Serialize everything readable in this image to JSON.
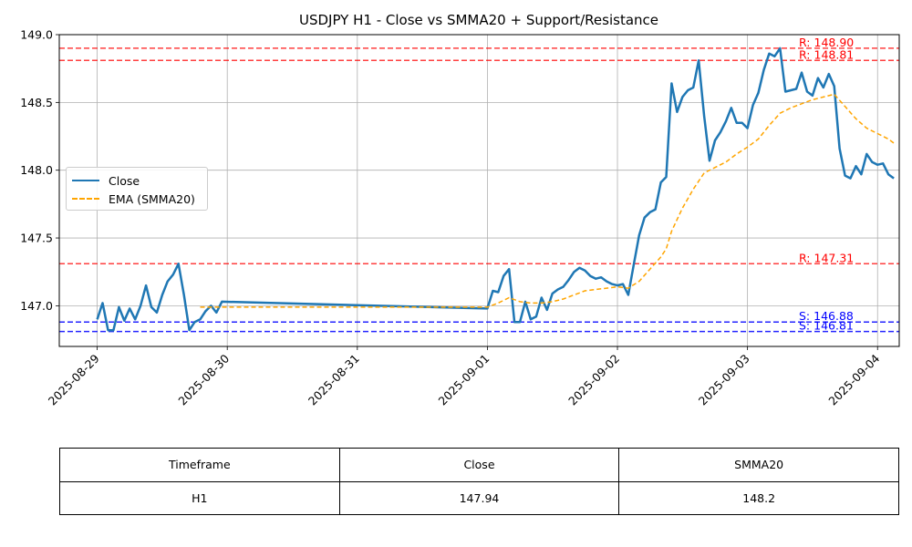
{
  "chart_data": {
    "type": "line",
    "title": "USDJPY H1 - Close vs SMMA20 + Support/Resistance",
    "xlabel": "",
    "ylabel": "",
    "x_range": [
      "2025-08-28 17:00",
      "2025-09-04 04:00"
    ],
    "ylim": [
      146.7,
      149.0
    ],
    "x_ticks": [
      "2025-08-29",
      "2025-08-30",
      "2025-08-31",
      "2025-09-01",
      "2025-09-02",
      "2025-09-03",
      "2025-09-04"
    ],
    "y_ticks": [
      "147.0",
      "147.5",
      "148.0",
      "148.5",
      "149.0"
    ],
    "grid": true,
    "legend_position": "center-left",
    "colors": {
      "close": "#1f77b4",
      "ema": "#ffa500",
      "resistance": "#ff0000",
      "support": "#0000ff",
      "grid": "#b0b0b0"
    },
    "series": [
      {
        "name": "Close",
        "style": "solid",
        "points": [
          [
            "2025-08-29 00:00",
            146.9
          ],
          [
            "2025-08-29 01:00",
            147.02
          ],
          [
            "2025-08-29 02:00",
            146.82
          ],
          [
            "2025-08-29 03:00",
            146.82
          ],
          [
            "2025-08-29 04:00",
            146.99
          ],
          [
            "2025-08-29 05:00",
            146.89
          ],
          [
            "2025-08-29 06:00",
            146.98
          ],
          [
            "2025-08-29 07:00",
            146.9
          ],
          [
            "2025-08-29 08:00",
            147.0
          ],
          [
            "2025-08-29 09:00",
            147.15
          ],
          [
            "2025-08-29 10:00",
            146.99
          ],
          [
            "2025-08-29 11:00",
            146.95
          ],
          [
            "2025-08-29 12:00",
            147.08
          ],
          [
            "2025-08-29 13:00",
            147.18
          ],
          [
            "2025-08-29 14:00",
            147.23
          ],
          [
            "2025-08-29 15:00",
            147.31
          ],
          [
            "2025-08-29 16:00",
            147.08
          ],
          [
            "2025-08-29 17:00",
            146.82
          ],
          [
            "2025-08-29 18:00",
            146.88
          ],
          [
            "2025-08-29 19:00",
            146.9
          ],
          [
            "2025-08-29 20:00",
            146.96
          ],
          [
            "2025-08-29 21:00",
            147.0
          ],
          [
            "2025-08-29 22:00",
            146.95
          ],
          [
            "2025-08-29 23:00",
            147.03
          ],
          [
            "2025-09-01 00:00",
            146.98
          ],
          [
            "2025-09-01 01:00",
            147.11
          ],
          [
            "2025-09-01 02:00",
            147.1
          ],
          [
            "2025-09-01 03:00",
            147.22
          ],
          [
            "2025-09-01 04:00",
            147.27
          ],
          [
            "2025-09-01 05:00",
            146.88
          ],
          [
            "2025-09-01 06:00",
            146.88
          ],
          [
            "2025-09-01 07:00",
            147.03
          ],
          [
            "2025-09-01 08:00",
            146.9
          ],
          [
            "2025-09-01 09:00",
            146.92
          ],
          [
            "2025-09-01 10:00",
            147.06
          ],
          [
            "2025-09-01 11:00",
            146.97
          ],
          [
            "2025-09-01 12:00",
            147.09
          ],
          [
            "2025-09-01 13:00",
            147.12
          ],
          [
            "2025-09-01 14:00",
            147.14
          ],
          [
            "2025-09-01 15:00",
            147.19
          ],
          [
            "2025-09-01 16:00",
            147.25
          ],
          [
            "2025-09-01 17:00",
            147.28
          ],
          [
            "2025-09-01 18:00",
            147.26
          ],
          [
            "2025-09-01 19:00",
            147.22
          ],
          [
            "2025-09-01 20:00",
            147.2
          ],
          [
            "2025-09-01 21:00",
            147.21
          ],
          [
            "2025-09-01 22:00",
            147.18
          ],
          [
            "2025-09-01 23:00",
            147.16
          ],
          [
            "2025-09-02 00:00",
            147.15
          ],
          [
            "2025-09-02 01:00",
            147.16
          ],
          [
            "2025-09-02 02:00",
            147.08
          ],
          [
            "2025-09-02 03:00",
            147.3
          ],
          [
            "2025-09-02 04:00",
            147.52
          ],
          [
            "2025-09-02 05:00",
            147.65
          ],
          [
            "2025-09-02 06:00",
            147.69
          ],
          [
            "2025-09-02 07:00",
            147.71
          ],
          [
            "2025-09-02 08:00",
            147.91
          ],
          [
            "2025-09-02 09:00",
            147.95
          ],
          [
            "2025-09-02 10:00",
            148.64
          ],
          [
            "2025-09-02 11:00",
            148.43
          ],
          [
            "2025-09-02 12:00",
            148.54
          ],
          [
            "2025-09-02 13:00",
            148.59
          ],
          [
            "2025-09-02 14:00",
            148.61
          ],
          [
            "2025-09-02 15:00",
            148.81
          ],
          [
            "2025-09-02 16:00",
            148.4
          ],
          [
            "2025-09-02 17:00",
            148.07
          ],
          [
            "2025-09-02 18:00",
            148.22
          ],
          [
            "2025-09-02 19:00",
            148.28
          ],
          [
            "2025-09-02 20:00",
            148.36
          ],
          [
            "2025-09-02 21:00",
            148.46
          ],
          [
            "2025-09-02 22:00",
            148.35
          ],
          [
            "2025-09-02 23:00",
            148.35
          ],
          [
            "2025-09-03 00:00",
            148.31
          ],
          [
            "2025-09-03 01:00",
            148.48
          ],
          [
            "2025-09-03 02:00",
            148.57
          ],
          [
            "2025-09-03 03:00",
            148.74
          ],
          [
            "2025-09-03 04:00",
            148.86
          ],
          [
            "2025-09-03 05:00",
            148.84
          ],
          [
            "2025-09-03 06:00",
            148.9
          ],
          [
            "2025-09-03 07:00",
            148.58
          ],
          [
            "2025-09-03 08:00",
            148.59
          ],
          [
            "2025-09-03 09:00",
            148.6
          ],
          [
            "2025-09-03 10:00",
            148.72
          ],
          [
            "2025-09-03 11:00",
            148.58
          ],
          [
            "2025-09-03 12:00",
            148.55
          ],
          [
            "2025-09-03 13:00",
            148.68
          ],
          [
            "2025-09-03 14:00",
            148.61
          ],
          [
            "2025-09-03 15:00",
            148.71
          ],
          [
            "2025-09-03 16:00",
            148.62
          ],
          [
            "2025-09-03 17:00",
            148.16
          ],
          [
            "2025-09-03 18:00",
            147.96
          ],
          [
            "2025-09-03 19:00",
            147.94
          ],
          [
            "2025-09-03 20:00",
            148.03
          ],
          [
            "2025-09-03 21:00",
            147.97
          ],
          [
            "2025-09-03 22:00",
            148.12
          ],
          [
            "2025-09-03 23:00",
            148.06
          ],
          [
            "2025-09-04 00:00",
            148.04
          ],
          [
            "2025-09-04 01:00",
            148.05
          ],
          [
            "2025-09-04 02:00",
            147.97
          ],
          [
            "2025-09-04 03:00",
            147.94
          ]
        ]
      },
      {
        "name": "EMA (SMMA20)",
        "style": "dashed",
        "points": [
          [
            "2025-08-29 19:00",
            146.99
          ],
          [
            "2025-08-29 23:00",
            146.99
          ],
          [
            "2025-09-01 00:00",
            146.99
          ],
          [
            "2025-09-01 02:00",
            147.02
          ],
          [
            "2025-09-01 04:00",
            147.06
          ],
          [
            "2025-09-01 06:00",
            147.03
          ],
          [
            "2025-09-01 08:00",
            147.02
          ],
          [
            "2025-09-01 10:00",
            147.02
          ],
          [
            "2025-09-01 12:00",
            147.03
          ],
          [
            "2025-09-01 14:00",
            147.05
          ],
          [
            "2025-09-01 16:00",
            147.08
          ],
          [
            "2025-09-01 18:00",
            147.11
          ],
          [
            "2025-09-01 20:00",
            147.12
          ],
          [
            "2025-09-01 22:00",
            147.13
          ],
          [
            "2025-09-02 00:00",
            147.14
          ],
          [
            "2025-09-02 02:00",
            147.13
          ],
          [
            "2025-09-02 04:00",
            147.18
          ],
          [
            "2025-09-02 06:00",
            147.27
          ],
          [
            "2025-09-02 08:00",
            147.36
          ],
          [
            "2025-09-02 09:00",
            147.42
          ],
          [
            "2025-09-02 10:00",
            147.55
          ],
          [
            "2025-09-02 12:00",
            147.72
          ],
          [
            "2025-09-02 14:00",
            147.86
          ],
          [
            "2025-09-02 16:00",
            147.98
          ],
          [
            "2025-09-02 18:00",
            148.02
          ],
          [
            "2025-09-02 20:00",
            148.06
          ],
          [
            "2025-09-02 22:00",
            148.12
          ],
          [
            "2025-09-03 00:00",
            148.17
          ],
          [
            "2025-09-03 02:00",
            148.23
          ],
          [
            "2025-09-03 04:00",
            148.33
          ],
          [
            "2025-09-03 06:00",
            148.42
          ],
          [
            "2025-09-03 08:00",
            148.46
          ],
          [
            "2025-09-03 10:00",
            148.49
          ],
          [
            "2025-09-03 12:00",
            148.52
          ],
          [
            "2025-09-03 14:00",
            148.54
          ],
          [
            "2025-09-03 16:00",
            148.56
          ],
          [
            "2025-09-03 18:00",
            148.47
          ],
          [
            "2025-09-03 20:00",
            148.38
          ],
          [
            "2025-09-03 22:00",
            148.31
          ],
          [
            "2025-09-04 00:00",
            148.27
          ],
          [
            "2025-09-04 02:00",
            148.23
          ],
          [
            "2025-09-04 03:00",
            148.2
          ]
        ]
      }
    ],
    "levels": [
      {
        "kind": "resistance",
        "value": 148.9,
        "label": "R: 148.90"
      },
      {
        "kind": "resistance",
        "value": 148.81,
        "label": "R: 148.81"
      },
      {
        "kind": "resistance",
        "value": 147.31,
        "label": "R: 147.31"
      },
      {
        "kind": "support",
        "value": 146.88,
        "label": "S: 146.88"
      },
      {
        "kind": "support",
        "value": 146.81,
        "label": "S: 146.81"
      }
    ]
  },
  "legend": {
    "close_label": "Close",
    "ema_label": "EMA (SMMA20)"
  },
  "table": {
    "headers": [
      "Timeframe",
      "Close",
      "SMMA20"
    ],
    "row": [
      "H1",
      "147.94",
      "148.2"
    ]
  }
}
